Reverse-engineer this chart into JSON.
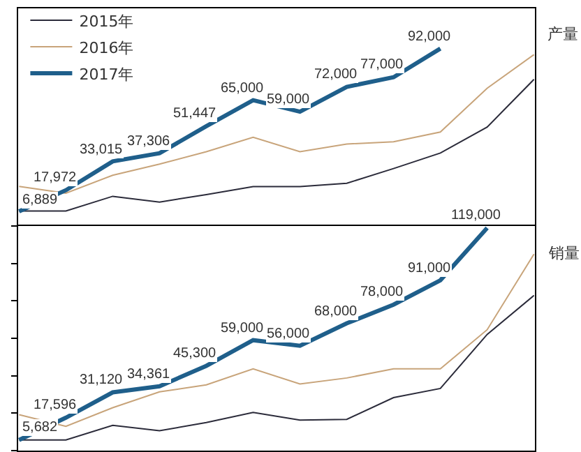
{
  "chart_data": [
    {
      "type": "line",
      "ylabel": "产量",
      "categories": [
        null,
        null,
        null,
        null,
        null,
        null,
        null,
        null,
        null,
        null,
        null,
        null
      ],
      "relative": false,
      "ylim": [
        0,
        113000
      ],
      "grid": false,
      "legend": "top left",
      "marker": "none",
      "series": [
        {
          "name": "2015年",
          "color": "#2b2b3a",
          "values": [
            7100,
            7100,
            14800,
            11800,
            15700,
            19900,
            19900,
            21600,
            29300,
            37400,
            51000,
            75900
          ]
        },
        {
          "name": "2016年",
          "color": "#c8a47a",
          "values": [
            20000,
            16400,
            25800,
            31600,
            38100,
            45600,
            38100,
            42100,
            43300,
            48400,
            71300,
            88800
          ]
        },
        {
          "name": "2017年",
          "color": "#1f5f8b",
          "values": [
            6889,
            17972,
            33015,
            37306,
            51447,
            65000,
            59000,
            72000,
            77000,
            92000,
            null,
            null
          ],
          "value_labels": [
            "6,889",
            "17,972",
            "33,015",
            "37,306",
            "51,447",
            "65,000",
            "59,000",
            "72,000",
            "77,000",
            "92,000",
            null,
            null
          ]
        }
      ]
    },
    {
      "type": "line",
      "ylabel": "销量",
      "categories": [
        null,
        null,
        null,
        null,
        null,
        null,
        null,
        null,
        null,
        null,
        null,
        null
      ],
      "ylim": [
        0,
        120000
      ],
      "yticks": [
        {
          "value": 0,
          "label": null
        },
        {
          "value": 20000,
          "label": null
        },
        {
          "value": 40000,
          "label": null
        },
        {
          "value": 60000,
          "label": null
        },
        {
          "value": 80000,
          "label": null
        },
        {
          "value": 100000,
          "label": null
        },
        {
          "value": 120000,
          "label": null
        }
      ],
      "grid": false,
      "marker": "none",
      "series": [
        {
          "color": "#2b2b3a",
          "values": [
            5700,
            5700,
            13500,
            10600,
            15000,
            20400,
            16300,
            16700,
            28300,
            33200,
            62100,
            82900
          ]
        },
        {
          "color": "#c8a47a",
          "values": [
            19200,
            13000,
            22900,
            31400,
            35100,
            43700,
            35600,
            38800,
            43700,
            43700,
            64600,
            105000
          ]
        },
        {
          "color": "#1f5f8b",
          "values": [
            5682,
            17596,
            31120,
            34361,
            45300,
            59000,
            56000,
            68000,
            78000,
            91000,
            119000,
            null
          ],
          "value_labels": [
            "5,682",
            "17,596",
            "31,120",
            "34,361",
            "45,300",
            "59,000",
            "56,000",
            "68,000",
            "78,000",
            "91,000",
            "119,000",
            null
          ]
        }
      ]
    }
  ]
}
